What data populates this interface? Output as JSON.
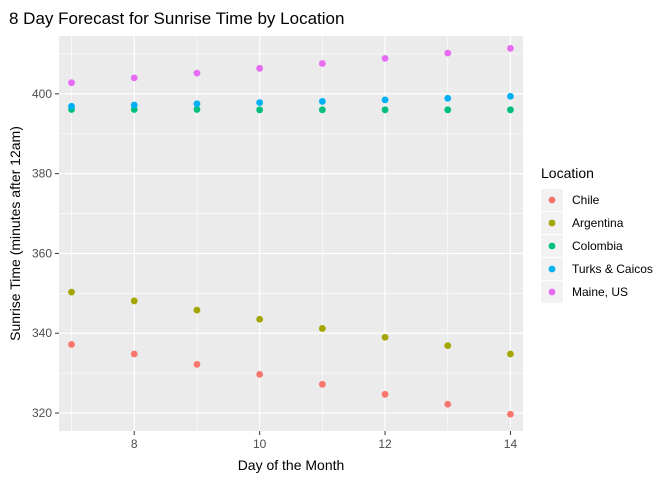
{
  "chart_data": {
    "type": "scatter",
    "title": "8 Day Forecast for Sunrise Time by Location",
    "xlabel": "Day of the Month",
    "ylabel": "Sunrise Time (minutes after 12am)",
    "x": [
      7,
      8,
      9,
      10,
      11,
      12,
      13,
      14
    ],
    "xlim": [
      6.8,
      14.2
    ],
    "ylim": [
      315.5,
      414.5
    ],
    "x_ticks": [
      8,
      10,
      12,
      14
    ],
    "x_minor_ticks": [
      7,
      9,
      11,
      13
    ],
    "y_ticks": [
      320,
      340,
      360,
      380,
      400
    ],
    "y_minor_ticks": [
      330,
      350,
      370,
      390,
      410
    ],
    "x_tick_labels": [
      "8",
      "10",
      "12",
      "14"
    ],
    "y_tick_labels": [
      "320",
      "340",
      "360",
      "380",
      "400"
    ],
    "grid": true,
    "legend": {
      "title": "Location",
      "position": "right"
    },
    "series": [
      {
        "name": "Chile",
        "color": "#F8766D",
        "values": [
          337.2,
          334.8,
          332.2,
          329.7,
          327.2,
          324.7,
          322.2,
          319.7
        ]
      },
      {
        "name": "Argentina",
        "color": "#A3A500",
        "values": [
          350.3,
          348.1,
          345.8,
          343.5,
          341.2,
          339.0,
          336.9,
          334.8
        ]
      },
      {
        "name": "Colombia",
        "color": "#00BF7D",
        "values": [
          396.1,
          396.1,
          396.1,
          396.0,
          396.0,
          396.0,
          396.0,
          396.0
        ]
      },
      {
        "name": "Turks & Caicos",
        "color": "#00B0F6",
        "values": [
          396.9,
          397.2,
          397.5,
          397.8,
          398.1,
          398.5,
          398.9,
          399.4
        ]
      },
      {
        "name": "Maine, US",
        "color": "#E76BF3",
        "values": [
          402.8,
          404.0,
          405.2,
          406.4,
          407.6,
          408.9,
          410.2,
          411.4
        ]
      }
    ]
  }
}
